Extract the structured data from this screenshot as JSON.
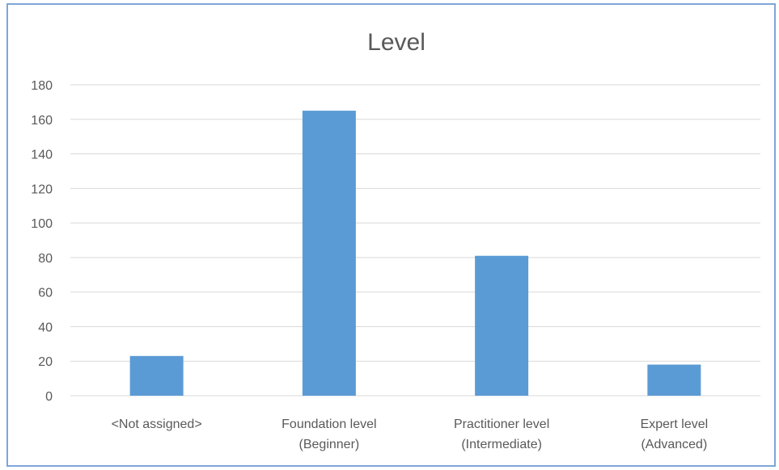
{
  "chart_data": {
    "type": "bar",
    "title": "Level",
    "categories": [
      [
        "<Not assigned>"
      ],
      [
        "Foundation level",
        "(Beginner)"
      ],
      [
        "Practitioner level",
        "(Intermediate)"
      ],
      [
        "Expert level",
        "(Advanced)"
      ]
    ],
    "values": [
      23,
      165,
      81,
      18
    ],
    "ylim": [
      0,
      180
    ],
    "yticks": [
      0,
      20,
      40,
      60,
      80,
      100,
      120,
      140,
      160,
      180
    ],
    "grid": true,
    "legend": "none",
    "bar_color": "#5b9bd5",
    "grid_color": "#d9d9d9",
    "text_color": "#595959"
  }
}
